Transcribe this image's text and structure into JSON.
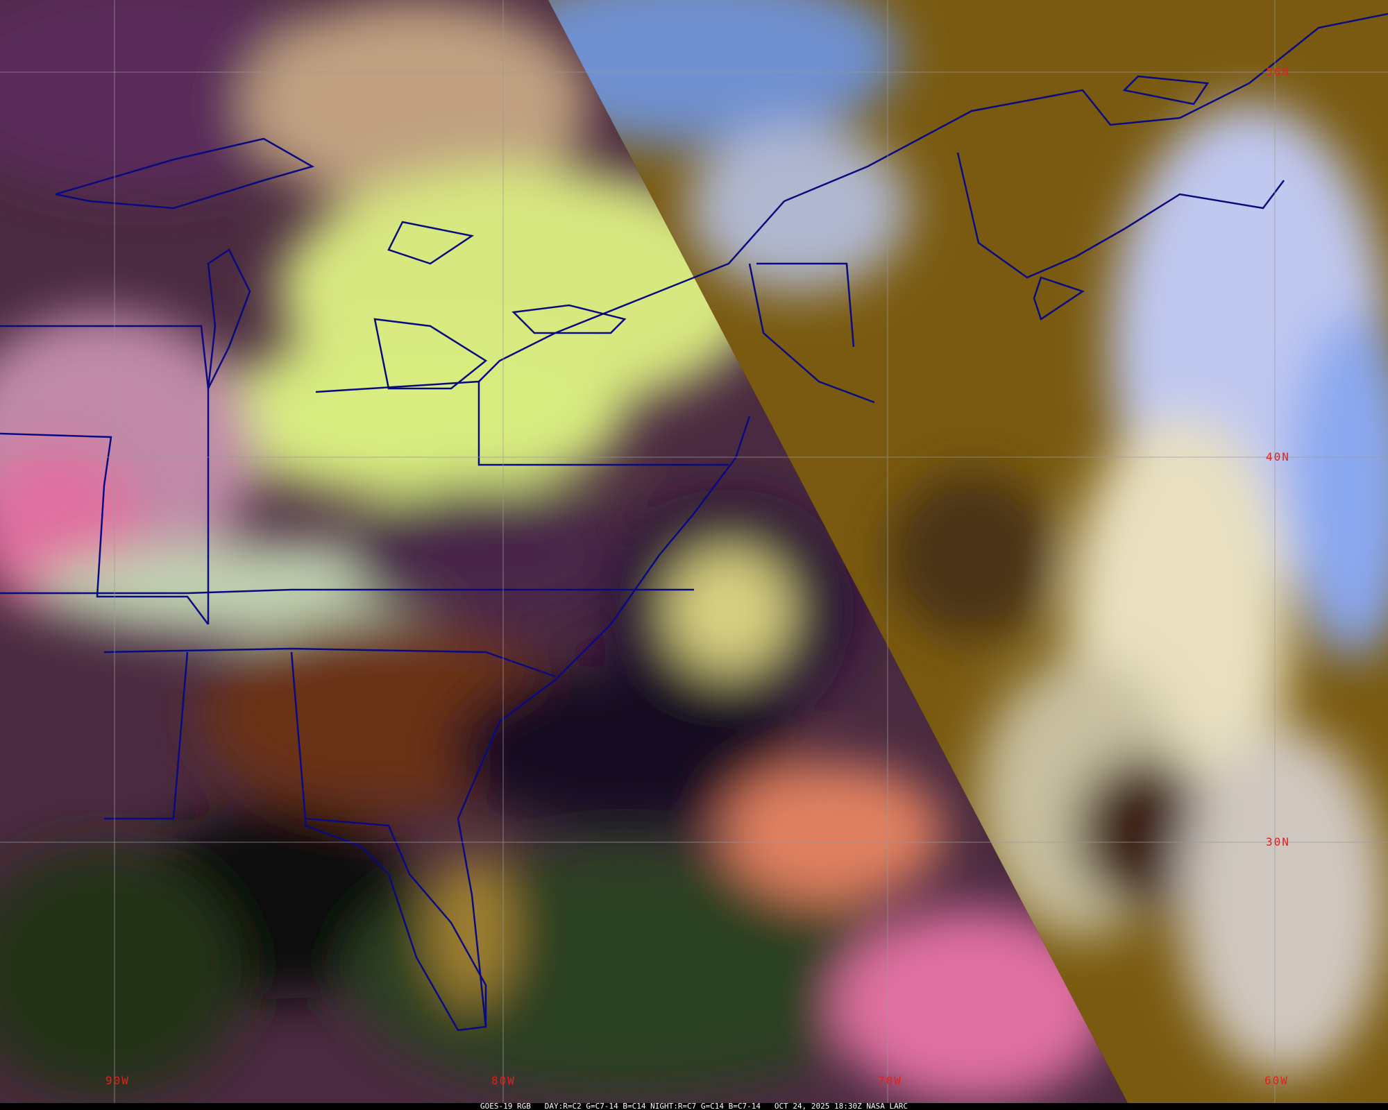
{
  "caption": {
    "satellite": "GOES-19 RGB",
    "day_recipe": "DAY:R=C2 G=C7-14 B=C14",
    "night_recipe": "NIGHT:R=C7 G=C14 B=C7-14",
    "timestamp": "OCT 24, 2025 18:30Z",
    "source": "NASA LARC"
  },
  "grid_labels": {
    "lon": [
      "90W",
      "80W",
      "70W",
      "60W"
    ],
    "lat": [
      "50N",
      "40N",
      "30N"
    ]
  },
  "colors": {
    "label": "#e02020",
    "boundaries": "#0a0a80",
    "day_side_clouds": "#d8ec80",
    "night_side_ground": "#7a5a10",
    "night_side_clouds": "#8aa8f0"
  }
}
